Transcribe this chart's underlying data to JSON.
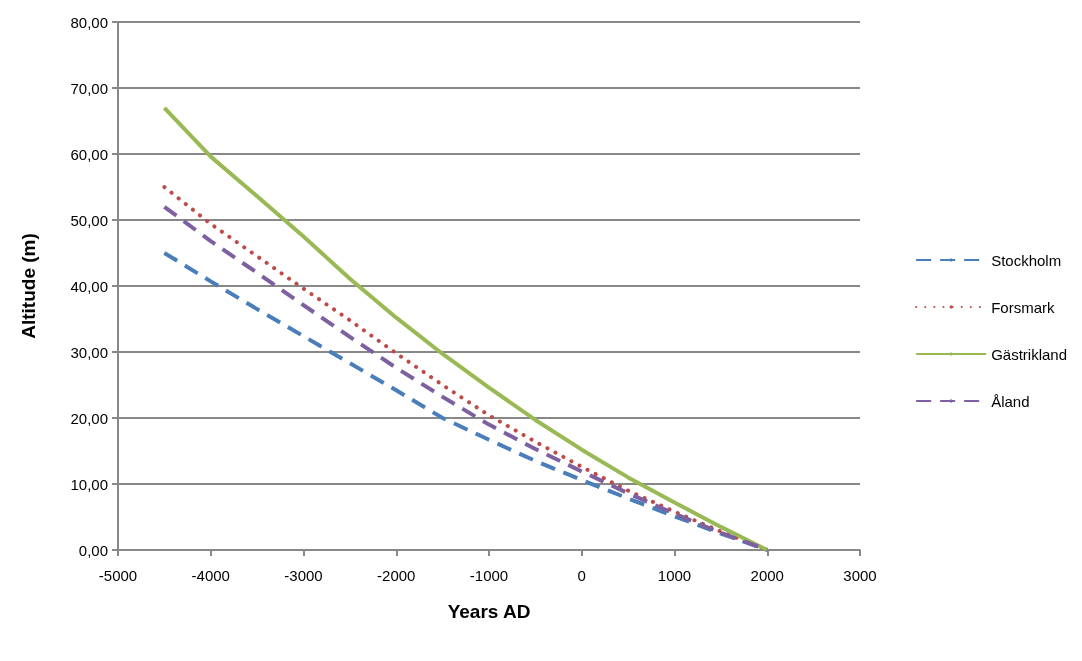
{
  "chart_data": {
    "type": "line",
    "xlabel": "Years AD",
    "ylabel": "Altitude (m)",
    "x": [
      -4500,
      -4000,
      -3500,
      -3000,
      -2500,
      -2000,
      -1500,
      -1000,
      -500,
      0,
      500,
      1000,
      1500,
      2000
    ],
    "series": [
      {
        "name": "Stockholm",
        "color": "#4a7ebb",
        "line_style": "dashed",
        "values": [
          45,
          40.7,
          36.5,
          32.4,
          28.3,
          24.2,
          20.0,
          16.7,
          13.5,
          10.6,
          7.8,
          5.1,
          2.5,
          0
        ]
      },
      {
        "name": "Forsmark",
        "color": "#be4b48",
        "line_style": "dotted",
        "values": [
          55,
          49.4,
          44.5,
          39.6,
          34.8,
          29.8,
          25.0,
          20.4,
          16.4,
          12.6,
          9.0,
          5.8,
          2.8,
          0
        ]
      },
      {
        "name": "Gästrikland",
        "color": "#98b954",
        "line_style": "solid",
        "values": [
          67,
          59.6,
          53.6,
          47.5,
          41.1,
          35.2,
          29.7,
          24.6,
          19.7,
          15.2,
          11.0,
          7.2,
          3.5,
          0
        ]
      },
      {
        "name": "Åland",
        "color": "#7d60a0",
        "line_style": "dashed",
        "values": [
          52,
          46.8,
          42.0,
          37.1,
          32.3,
          27.6,
          23.2,
          19.0,
          15.3,
          11.9,
          8.6,
          5.5,
          2.6,
          0
        ]
      }
    ],
    "xlim": [
      -5000,
      3000
    ],
    "xticks": [
      -5000,
      -4000,
      -3000,
      -2000,
      -1000,
      0,
      1000,
      2000,
      3000
    ],
    "ylim": [
      0,
      80
    ],
    "yticks": [
      {
        "value": 0,
        "label": "0,00"
      },
      {
        "value": 10,
        "label": "10,00"
      },
      {
        "value": 20,
        "label": "20,00"
      },
      {
        "value": 30,
        "label": "30,00"
      },
      {
        "value": 40,
        "label": "40,00"
      },
      {
        "value": 50,
        "label": "50,00"
      },
      {
        "value": 60,
        "label": "60,00"
      },
      {
        "value": 70,
        "label": "70,00"
      },
      {
        "value": 80,
        "label": "80,00"
      }
    ],
    "grid": "y",
    "legend": "right",
    "marker": "none"
  }
}
